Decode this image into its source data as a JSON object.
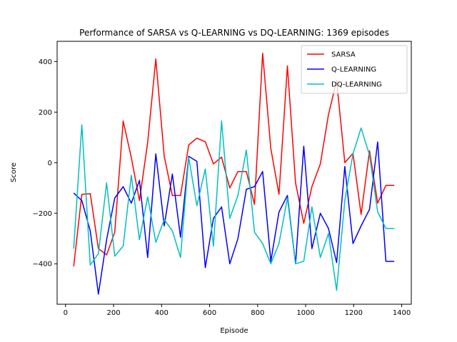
{
  "chart_data": {
    "type": "line",
    "title": "Performance of SARSA vs Q-LEARNING vs DQ-LEARNING: 1369 episodes",
    "xlabel": "Episode",
    "ylabel": "Score",
    "xlim": [
      -35,
      1440
    ],
    "ylim": [
      -560,
      480
    ],
    "xticks": [
      0,
      200,
      400,
      600,
      800,
      1000,
      1200,
      1400
    ],
    "yticks": [
      -400,
      -200,
      0,
      200,
      400
    ],
    "grid": false,
    "legend_position": "top-right",
    "x": [
      34,
      68,
      103,
      137,
      171,
      205,
      240,
      274,
      308,
      342,
      376,
      411,
      445,
      479,
      513,
      547,
      582,
      616,
      650,
      684,
      718,
      753,
      787,
      821,
      855,
      889,
      924,
      958,
      992,
      1026,
      1061,
      1095,
      1129,
      1163,
      1197,
      1231,
      1266,
      1300,
      1334,
      1369
    ],
    "series": [
      {
        "name": "SARSA",
        "color": "#ff0000",
        "values": [
          -410,
          -125,
          -123,
          -340,
          -365,
          -275,
          165,
          20,
          -150,
          80,
          410,
          25,
          -130,
          -130,
          70,
          97,
          83,
          -5,
          22,
          -100,
          -35,
          -35,
          -165,
          433,
          55,
          -125,
          383,
          -80,
          -240,
          -95,
          -5,
          190,
          325,
          0,
          37,
          -205,
          47,
          -160,
          -90,
          -90
        ]
      },
      {
        "name": "Q-LEARNING",
        "color": "#0000ff",
        "values": [
          -120,
          -150,
          -270,
          -520,
          -305,
          -140,
          -95,
          -160,
          -70,
          -375,
          35,
          -250,
          -45,
          -295,
          25,
          5,
          -415,
          -220,
          -175,
          -400,
          -300,
          -105,
          -95,
          -35,
          -390,
          -195,
          -130,
          -400,
          65,
          -340,
          -200,
          -260,
          -395,
          -15,
          -320,
          -250,
          -185,
          82,
          -390,
          -390
        ]
      },
      {
        "name": "DQ-LEARNING",
        "color": "#00bfbf",
        "values": [
          -340,
          150,
          -405,
          -360,
          -80,
          -370,
          -330,
          -50,
          -305,
          -135,
          -315,
          -225,
          -270,
          -375,
          20,
          -170,
          -25,
          -330,
          165,
          -220,
          -130,
          50,
          -275,
          -320,
          -400,
          -320,
          -140,
          -400,
          -390,
          -175,
          -375,
          -280,
          -505,
          -150,
          35,
          137,
          30,
          -195,
          -260,
          -260
        ]
      }
    ]
  }
}
